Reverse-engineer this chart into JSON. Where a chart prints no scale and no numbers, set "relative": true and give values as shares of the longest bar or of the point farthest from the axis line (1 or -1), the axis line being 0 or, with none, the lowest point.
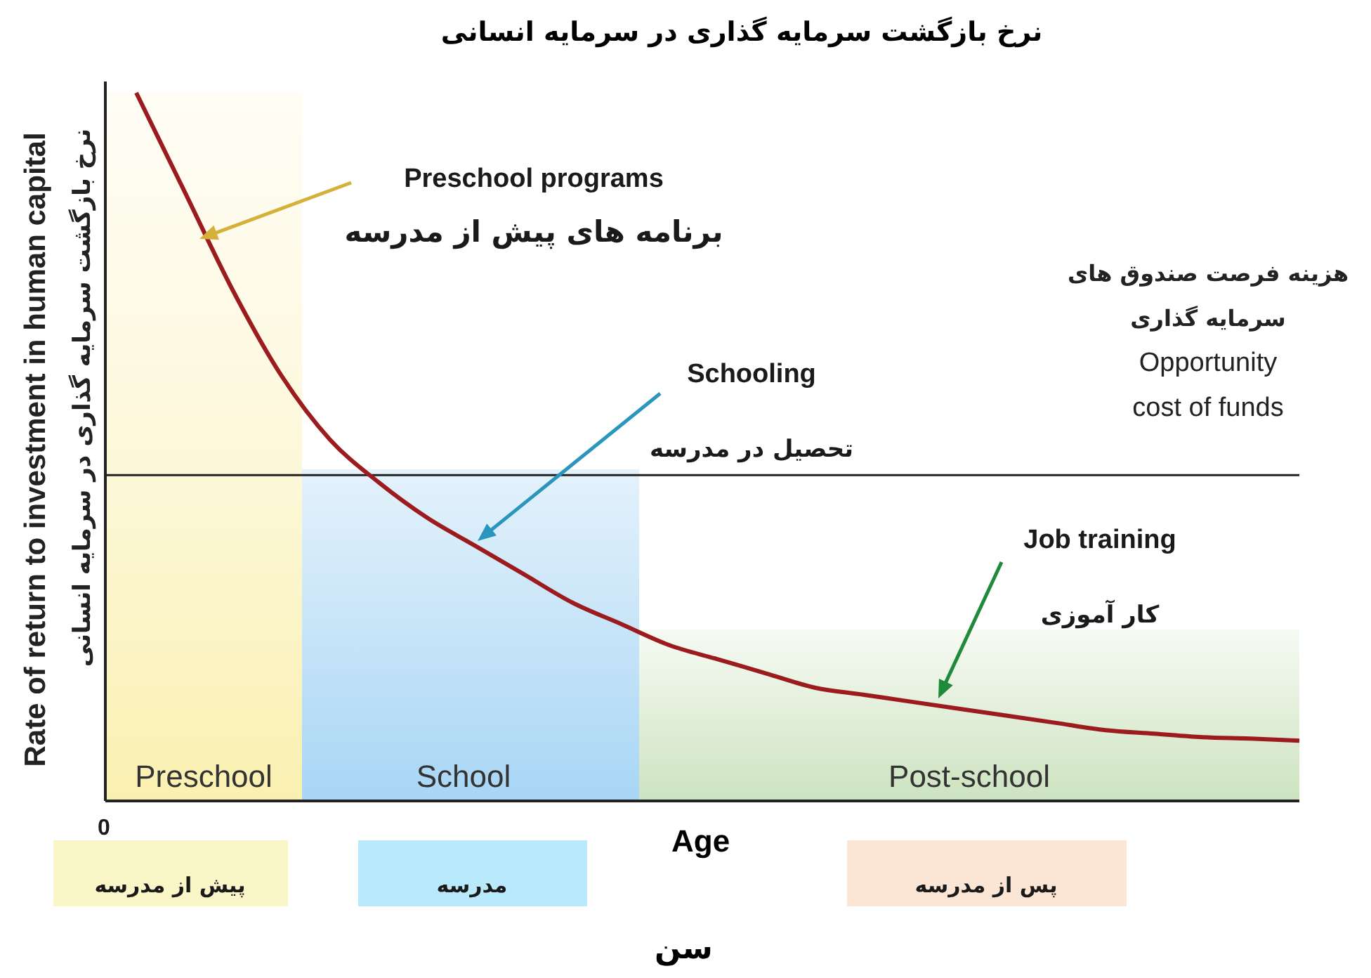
{
  "chart_data": {
    "type": "line",
    "relative": true,
    "title": "نرخ بازگشت سرمایه گذاری در سرمایه انسانی",
    "xlabel": "Age\nسن",
    "ylabel": "Rate of return to investment in human capital\nنرخ بازگشت سرمایه گذاری در سرمایه انسانی",
    "categories": [
      null,
      null,
      null,
      null,
      null,
      null,
      null,
      null,
      null,
      null,
      null,
      null,
      null,
      null,
      null,
      null,
      null,
      null,
      null,
      null,
      null,
      null,
      null,
      null,
      null
    ],
    "series": [
      {
        "color": "#9b1b1e",
        "values": [
          1.0,
          0.86,
          0.72,
          0.6,
          0.51,
          0.45,
          0.4,
          0.36,
          0.32,
          0.28,
          0.25,
          0.22,
          0.2,
          0.18,
          0.16,
          0.15,
          0.14,
          0.13,
          0.12,
          0.11,
          0.1,
          0.095,
          0.09,
          0.088,
          0.085
        ]
      }
    ],
    "ref_lines": [
      {
        "axis": "y",
        "value": 0.46,
        "label": "هزینه فرصت صندوق های\nسرمایه گذاری\nOpportunity\ncost of funds",
        "color": "#222222"
      }
    ],
    "annotations": [
      "Preschool programs\nبرنامه های پیش از مدرسه",
      "Schooling\nتحصیل در مدرسه",
      "Job training\nکار آموزی",
      "Preschool",
      "School",
      "Post-school",
      "پیش از مدرسه",
      "مدرسه",
      "پس از مدرسه",
      "0"
    ]
  }
}
